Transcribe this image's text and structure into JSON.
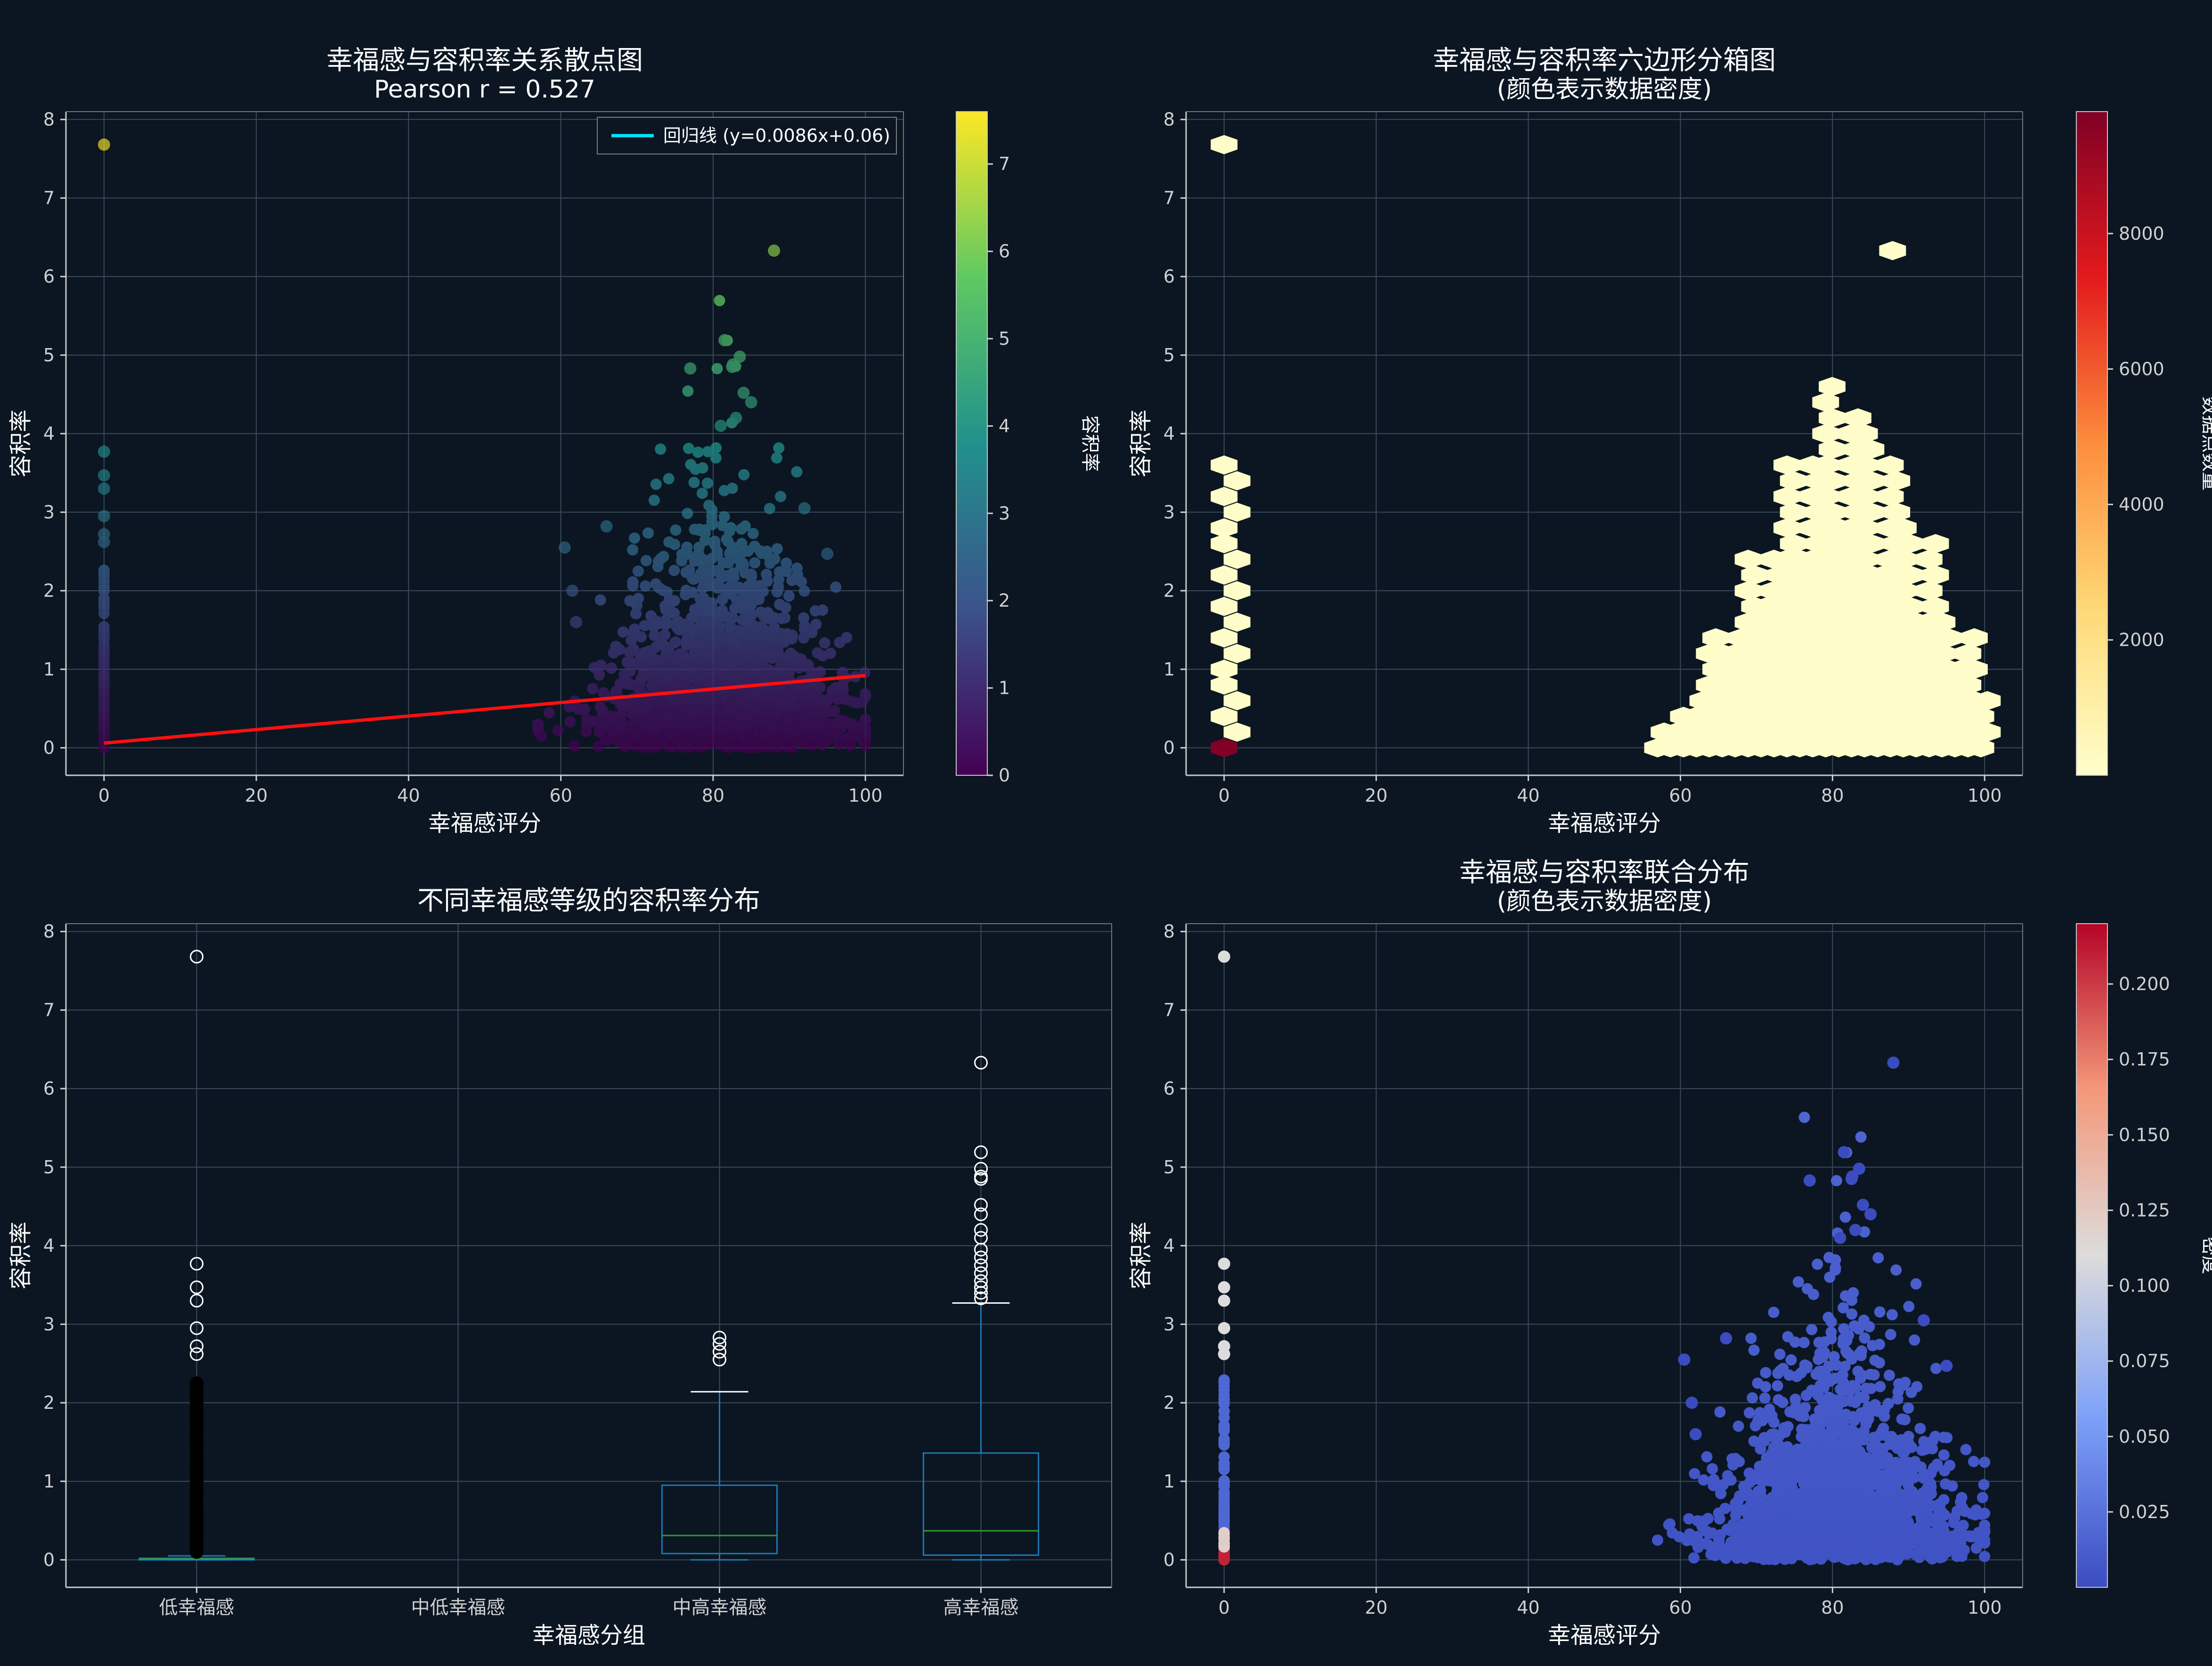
{
  "figure": {
    "background": "#0b1622",
    "axes_bg": "#0b1622",
    "text_color": "#ffffff",
    "tick_color": "#d0d0d0",
    "grid_color": "#3a4a5a"
  },
  "chart_data": [
    {
      "type": "scatter",
      "title": "幸福感与容积率关系散点图",
      "subtitle": "Pearson r = 0.527",
      "xlabel": "幸福感评分",
      "ylabel": "容积率",
      "xlim": [
        -5,
        105
      ],
      "ylim": [
        -0.35,
        8.1
      ],
      "xticks": [
        0,
        20,
        40,
        60,
        80,
        100
      ],
      "yticks": [
        0,
        1,
        2,
        3,
        4,
        5,
        6,
        7,
        8
      ],
      "grid": true,
      "colormap": "viridis",
      "colorbar": {
        "label": "容积率",
        "ticks": [
          0,
          1,
          2,
          3,
          4,
          5,
          6,
          7
        ],
        "range": [
          0,
          7.6
        ]
      },
      "regression": {
        "label": "回归线 (y=0.0086x+0.06)",
        "slope": 0.0086,
        "intercept": 0.06,
        "x": [
          0,
          100
        ],
        "color": "#ff1010"
      },
      "legend": {
        "location": "upper right",
        "line_color": "#00e5ff"
      },
      "outliers": [
        {
          "x": 0,
          "y": 7.68
        },
        {
          "x": 0,
          "y": 3.77
        },
        {
          "x": 0,
          "y": 3.47
        },
        {
          "x": 0,
          "y": 3.3
        },
        {
          "x": 0,
          "y": 2.95
        },
        {
          "x": 0,
          "y": 2.72
        },
        {
          "x": 0,
          "y": 2.62
        },
        {
          "x": 88,
          "y": 6.33
        },
        {
          "x": 81.5,
          "y": 5.19
        },
        {
          "x": 82.5,
          "y": 4.85
        },
        {
          "x": 83.5,
          "y": 4.98
        },
        {
          "x": 82.6,
          "y": 4.88
        },
        {
          "x": 77,
          "y": 4.83
        },
        {
          "x": 84,
          "y": 4.52
        },
        {
          "x": 85,
          "y": 4.4
        },
        {
          "x": 83,
          "y": 4.2
        },
        {
          "x": 81,
          "y": 4.1
        },
        {
          "x": 66,
          "y": 2.82
        },
        {
          "x": 60.5,
          "y": 2.55
        },
        {
          "x": 95,
          "y": 2.47
        },
        {
          "x": 92,
          "y": 3.05
        },
        {
          "x": 61.5,
          "y": 2.0
        },
        {
          "x": 62,
          "y": 1.6
        }
      ]
    },
    {
      "type": "heatmap",
      "title": "幸福感与容积率六边形分箱图",
      "subtitle": "(颜色表示数据密度)",
      "xlabel": "幸福感评分",
      "ylabel": "容积率",
      "xlim": [
        -5,
        105
      ],
      "ylim": [
        -0.35,
        8.1
      ],
      "xticks": [
        0,
        20,
        40,
        60,
        80,
        100
      ],
      "yticks": [
        0,
        1,
        2,
        3,
        4,
        5,
        6,
        7,
        8
      ],
      "grid": true,
      "colormap": "YlOrRd",
      "colorbar": {
        "label": "数据点数量",
        "ticks": [
          2000,
          4000,
          6000,
          8000
        ],
        "range": [
          1,
          9800
        ]
      },
      "dense_bins": [
        {
          "x": 0,
          "y": 0,
          "count": 9800
        }
      ]
    },
    {
      "type": "box",
      "title": "不同幸福感等级的容积率分布",
      "xlabel": "幸福感分组",
      "ylabel": "容积率",
      "ylim": [
        -0.35,
        8.1
      ],
      "yticks": [
        0,
        1,
        2,
        3,
        4,
        5,
        6,
        7,
        8
      ],
      "grid": true,
      "categories": [
        "低幸福感",
        "中低幸福感",
        "中高幸福感",
        "高幸福感"
      ],
      "boxes": [
        {
          "q1": 0.0,
          "median": 0.01,
          "q3": 0.02,
          "whisker_low": 0.0,
          "whisker_high": 0.05,
          "fliers": [
            7.68,
            3.77,
            3.47,
            3.3,
            2.95,
            2.72,
            2.62,
            2.25,
            2.2,
            2.15,
            2.1,
            2.05,
            2.0,
            1.95,
            1.9,
            1.85,
            1.8,
            1.75,
            1.7,
            1.65,
            1.6,
            1.55,
            1.5,
            1.45,
            1.4,
            1.35,
            1.3,
            1.25,
            1.2,
            1.15,
            1.1,
            1.05,
            1.0,
            0.95,
            0.9,
            0.85,
            0.8,
            0.75,
            0.7,
            0.65,
            0.6,
            0.55,
            0.5,
            0.45,
            0.4,
            0.35,
            0.3,
            0.25,
            0.2,
            0.15,
            0.1
          ]
        },
        null,
        {
          "q1": 0.08,
          "median": 0.31,
          "q3": 0.95,
          "whisker_low": 0.0,
          "whisker_high": 2.14,
          "fliers": [
            2.55,
            2.65,
            2.75,
            2.83
          ]
        },
        {
          "q1": 0.06,
          "median": 0.37,
          "q3": 1.36,
          "whisker_low": 0.0,
          "whisker_high": 3.27,
          "fliers": [
            6.33,
            5.19,
            4.98,
            4.88,
            4.85,
            4.52,
            4.4,
            4.2,
            4.1,
            3.95,
            3.85,
            3.75,
            3.65,
            3.55,
            3.47,
            3.4,
            3.33
          ]
        }
      ]
    },
    {
      "type": "scatter",
      "title": "幸福感与容积率联合分布",
      "subtitle": "(颜色表示数据密度)",
      "xlabel": "幸福感评分",
      "ylabel": "容积率",
      "xlim": [
        -5,
        105
      ],
      "ylim": [
        -0.35,
        8.1
      ],
      "xticks": [
        0,
        20,
        40,
        60,
        80,
        100
      ],
      "yticks": [
        0,
        1,
        2,
        3,
        4,
        5,
        6,
        7,
        8
      ],
      "grid": true,
      "colormap": "coolwarm",
      "colorbar": {
        "label": "密度",
        "ticks": [
          0.025,
          0.05,
          0.075,
          0.1,
          0.125,
          0.15,
          0.175,
          0.2
        ],
        "tick_labels": [
          "0.025",
          "0.050",
          "0.075",
          "0.100",
          "0.125",
          "0.150",
          "0.175",
          "0.200"
        ],
        "range": [
          0.0,
          0.22
        ]
      }
    }
  ]
}
